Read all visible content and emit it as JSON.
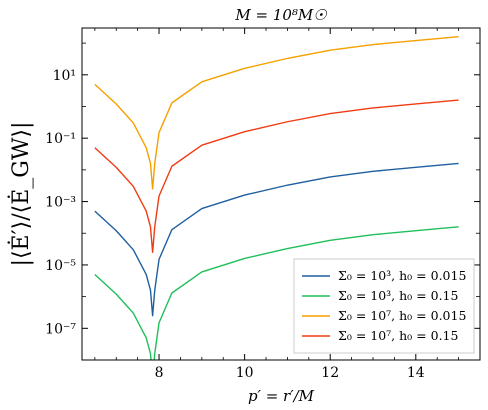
{
  "chart_data": {
    "type": "line",
    "title": "M = 10⁸M☉",
    "xlabel": "p′ = r′/M",
    "ylabel": "|⟨Ė′⟩/⟨Ė_GW⟩|",
    "xlim": [
      6.2,
      15.5
    ],
    "ylim": [
      1e-08,
      300
    ],
    "yscale": "log",
    "grid": false,
    "legend_position": "lower-right",
    "x_ticks": [
      {
        "value": 8,
        "label": "8"
      },
      {
        "value": 10,
        "label": "10"
      },
      {
        "value": 12,
        "label": "12"
      },
      {
        "value": 14,
        "label": "14"
      }
    ],
    "y_ticks": [
      {
        "value": 1e-07,
        "label": "10⁻⁷"
      },
      {
        "value": 1e-05,
        "label": "10⁻⁵"
      },
      {
        "value": 0.001,
        "label": "10⁻³"
      },
      {
        "value": 0.1,
        "label": "10⁻¹"
      },
      {
        "value": 10,
        "label": "10¹"
      }
    ],
    "series": [
      {
        "name": "Σ₀ = 10³, h₀ = 0.015",
        "color": "#1f5fa0",
        "x": [
          6.5,
          7.0,
          7.4,
          7.7,
          7.8,
          7.85,
          7.9,
          8.0,
          8.3,
          9.0,
          10.0,
          11.0,
          12.0,
          13.0,
          14.0,
          15.0
        ],
        "y": [
          0.0005,
          0.00012,
          3e-05,
          5e-06,
          1.6e-06,
          2.5e-07,
          1.6e-06,
          1.5e-05,
          0.00013,
          0.0006,
          0.0016,
          0.0033,
          0.006,
          0.009,
          0.012,
          0.016
        ]
      },
      {
        "name": "Σ₀ = 10³, h₀ = 0.15",
        "color": "#1fbf5a",
        "x": [
          6.5,
          7.0,
          7.4,
          7.7,
          7.8,
          7.85,
          7.9,
          8.0,
          8.3,
          9.0,
          10.0,
          11.0,
          12.0,
          13.0,
          14.0,
          15.0
        ],
        "y": [
          5e-06,
          1.2e-06,
          3e-07,
          5e-08,
          1.6e-08,
          2.5e-09,
          1.6e-08,
          1.5e-07,
          1.3e-06,
          6e-06,
          1.6e-05,
          3.3e-05,
          6e-05,
          9e-05,
          0.00012,
          0.00016
        ]
      },
      {
        "name": "Σ₀ = 10⁷, h₀ = 0.015",
        "color": "#f5a000",
        "x": [
          6.5,
          7.0,
          7.4,
          7.7,
          7.8,
          7.85,
          7.9,
          8.0,
          8.3,
          9.0,
          10.0,
          11.0,
          12.0,
          13.0,
          14.0,
          15.0
        ],
        "y": [
          5,
          1.2,
          0.3,
          0.05,
          0.016,
          0.0025,
          0.016,
          0.15,
          1.3,
          6,
          16,
          33,
          60,
          90,
          120,
          160
        ]
      },
      {
        "name": "Σ₀ = 10⁷, h₀ = 0.15",
        "color": "#f03c14",
        "x": [
          6.5,
          7.0,
          7.4,
          7.7,
          7.8,
          7.85,
          7.9,
          8.0,
          8.3,
          9.0,
          10.0,
          11.0,
          12.0,
          13.0,
          14.0,
          15.0
        ],
        "y": [
          0.05,
          0.012,
          0.003,
          0.0005,
          0.00016,
          2.5e-05,
          0.00016,
          0.0015,
          0.013,
          0.06,
          0.16,
          0.33,
          0.6,
          0.9,
          1.2,
          1.6
        ]
      }
    ]
  }
}
